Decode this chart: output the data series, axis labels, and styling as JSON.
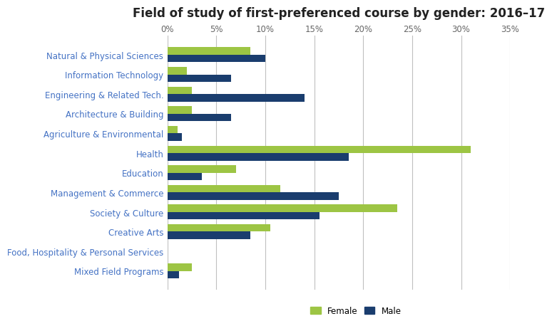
{
  "title": "Field of study of first-preferenced course by gender: 2016–17",
  "categories": [
    "Natural & Physical Sciences",
    "Information Technology",
    "Engineering & Related Tech.",
    "Architecture & Building",
    "Agriculture & Environmental",
    "Health",
    "Education",
    "Management & Commerce",
    "Society & Culture",
    "Creative Arts",
    "Food, Hospitality & Personal Services",
    "Mixed Field Programs"
  ],
  "female": [
    8.5,
    2.0,
    2.5,
    2.5,
    1.0,
    31.0,
    7.0,
    11.5,
    23.5,
    10.5,
    0.0,
    2.5
  ],
  "male": [
    10.0,
    6.5,
    14.0,
    6.5,
    1.5,
    18.5,
    3.5,
    17.5,
    15.5,
    8.5,
    0.0,
    1.2
  ],
  "female_color": "#9dc544",
  "male_color": "#1a3d6e",
  "xlim": [
    0,
    35
  ],
  "xticks": [
    0,
    5,
    10,
    15,
    20,
    25,
    30,
    35
  ],
  "xticklabels": [
    "0%",
    "5%",
    "10%",
    "15%",
    "20%",
    "25%",
    "30%",
    "35%"
  ],
  "title_fontsize": 12,
  "label_fontsize": 8.5,
  "tick_fontsize": 8.5,
  "legend_labels": [
    "Female",
    "Male"
  ],
  "bar_height": 0.38,
  "label_color": "#4472c4",
  "background_color": "#ffffff",
  "grid_color": "#c0c0c0"
}
